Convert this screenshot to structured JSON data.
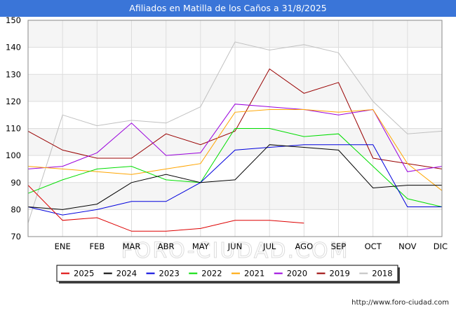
{
  "chart_data": {
    "type": "line",
    "title": "Afiliados en Matilla de los Caños a 31/8/2025",
    "categories": [
      "",
      "ENE",
      "FEB",
      "MAR",
      "ABR",
      "MAY",
      "JUN",
      "JUL",
      "AGO",
      "SEP",
      "OCT",
      "NOV",
      "DIC"
    ],
    "ylim": [
      70,
      150
    ],
    "yticks": [
      70,
      80,
      90,
      100,
      110,
      120,
      130,
      140,
      150
    ],
    "grid": true,
    "legend_position": "bottom",
    "watermark": "FORO-CIUDAD.COM",
    "source_url": "http://www.foro-ciudad.com",
    "series": [
      {
        "name": "2025",
        "color": "#dd0000",
        "values": [
          89,
          76,
          77,
          72,
          72,
          73,
          76,
          76,
          75,
          null,
          null,
          null,
          null
        ]
      },
      {
        "name": "2024",
        "color": "#000000",
        "values": [
          81,
          80,
          82,
          90,
          93,
          90,
          91,
          104,
          103,
          102,
          88,
          89,
          89
        ]
      },
      {
        "name": "2023",
        "color": "#0000dd",
        "values": [
          81,
          78,
          80,
          83,
          83,
          90,
          102,
          103,
          104,
          104,
          104,
          81,
          81
        ]
      },
      {
        "name": "2022",
        "color": "#00dd00",
        "values": [
          86,
          91,
          95,
          96,
          91,
          90,
          110,
          110,
          107,
          108,
          96,
          84,
          81
        ]
      },
      {
        "name": "2021",
        "color": "#ffa500",
        "values": [
          96,
          95,
          94,
          93,
          95,
          97,
          116,
          117,
          117,
          116,
          117,
          97,
          87
        ]
      },
      {
        "name": "2020",
        "color": "#9900dd",
        "values": [
          95,
          96,
          101,
          112,
          100,
          101,
          119,
          118,
          117,
          115,
          117,
          94,
          96
        ]
      },
      {
        "name": "2019",
        "color": "#990000",
        "values": [
          109,
          102,
          99,
          99,
          108,
          104,
          109,
          132,
          123,
          127,
          99,
          97,
          95
        ]
      },
      {
        "name": "2018",
        "color": "#c0c0c0",
        "values": [
          75,
          115,
          111,
          113,
          112,
          118,
          142,
          139,
          141,
          138,
          120,
          108,
          109
        ]
      }
    ]
  }
}
